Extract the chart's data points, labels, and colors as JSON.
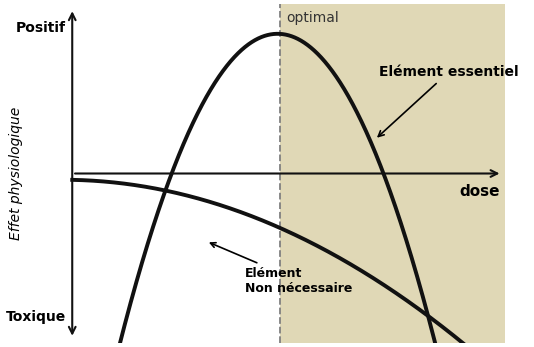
{
  "ylabel": "Effet physiologique",
  "xlabel": "dose",
  "xlim": [
    0,
    10
  ],
  "ylim": [
    -4,
    4
  ],
  "optimal_x_left": 4.8,
  "optimal_label": "optimal",
  "positif_label": "Positif",
  "toxique_label": "Toxique",
  "element_essentiel_label": "Elément essentiel",
  "element_label": "Elément",
  "non_necessaire_label": "Non nécessaire",
  "shade_color": "#c8b87a",
  "shade_alpha": 0.55,
  "curve_color": "#111111",
  "background_color": "#ffffff",
  "axis_color": "#111111",
  "curve_lw": 2.8
}
